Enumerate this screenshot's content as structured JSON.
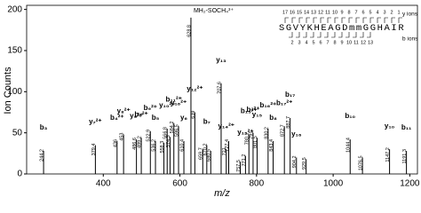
{
  "chart_data": {
    "type": "stem",
    "y_label": "Ion Counts",
    "x_label": "m/z",
    "xlim": [
      200,
      1220
    ],
    "xticks": [
      400,
      600,
      800,
      1000,
      1200
    ],
    "ylim": [
      0,
      205
    ],
    "yticks": [
      0,
      50,
      100,
      150,
      200
    ],
    "color": "#000000",
    "x": [
      244.2,
      379.4,
      436.0,
      453.0,
      486.6,
      499.2,
      522.9,
      536.2,
      558.3,
      566.8,
      574.3,
      584.2,
      596.5,
      610.4,
      628.8,
      639.0,
      659.7,
      670.2,
      680.5,
      707.6,
      721.0,
      727.4,
      757.5,
      771.2,
      780.1,
      791.0,
      801.5,
      830.2,
      843.4,
      872.7,
      887.7,
      904.2,
      929.5,
      1044.4,
      1076.5,
      1147.2,
      1191.3
    ],
    "values": [
      28,
      35,
      40,
      48,
      42,
      44,
      52,
      40,
      38,
      55,
      45,
      62,
      58,
      40,
      190,
      75,
      30,
      35,
      28,
      110,
      30,
      40,
      15,
      22,
      48,
      50,
      44,
      55,
      40,
      58,
      68,
      20,
      18,
      42,
      20,
      30,
      28
    ],
    "ion_labels": [
      "b₃",
      "y₇²⁺",
      "b₄²⁺",
      "y₈²⁺",
      "y₉²⁺",
      "b₆²⁺",
      "b₉²⁺",
      "b₅",
      null,
      "y₁₀²⁺",
      null,
      "b₁₁²⁺",
      "y₁₆²⁺",
      "y₆",
      null,
      "y₁₂²⁺",
      null,
      "b₇",
      null,
      "y₁₃",
      "y₁₄²⁺",
      null,
      null,
      "y₁₅²⁺",
      "b₁₅²⁺",
      "b₇²⁺",
      "y₁₅",
      "b₁₆²⁺",
      "b₈",
      "b₁₇²⁺",
      "b₁₇",
      "y₁₆",
      null,
      "b₁₀",
      null,
      "y₁₀",
      "b₁₁"
    ],
    "annotation": {
      "text": "MH₂-SOCH₄³⁺",
      "x": 628.8
    },
    "inset": {
      "sequence": "SGVYKHEAGDmmGGHAIR",
      "y_ion_numbers": [
        17,
        16,
        15,
        14,
        13,
        12,
        11,
        10,
        9,
        8,
        7,
        6,
        5,
        4,
        3,
        2,
        1
      ],
      "b_ion_numbers": [
        2,
        3,
        4,
        5,
        6,
        7,
        8,
        9,
        10,
        11,
        12,
        13
      ],
      "y_label": "y ions",
      "b_label": "b ions"
    }
  }
}
